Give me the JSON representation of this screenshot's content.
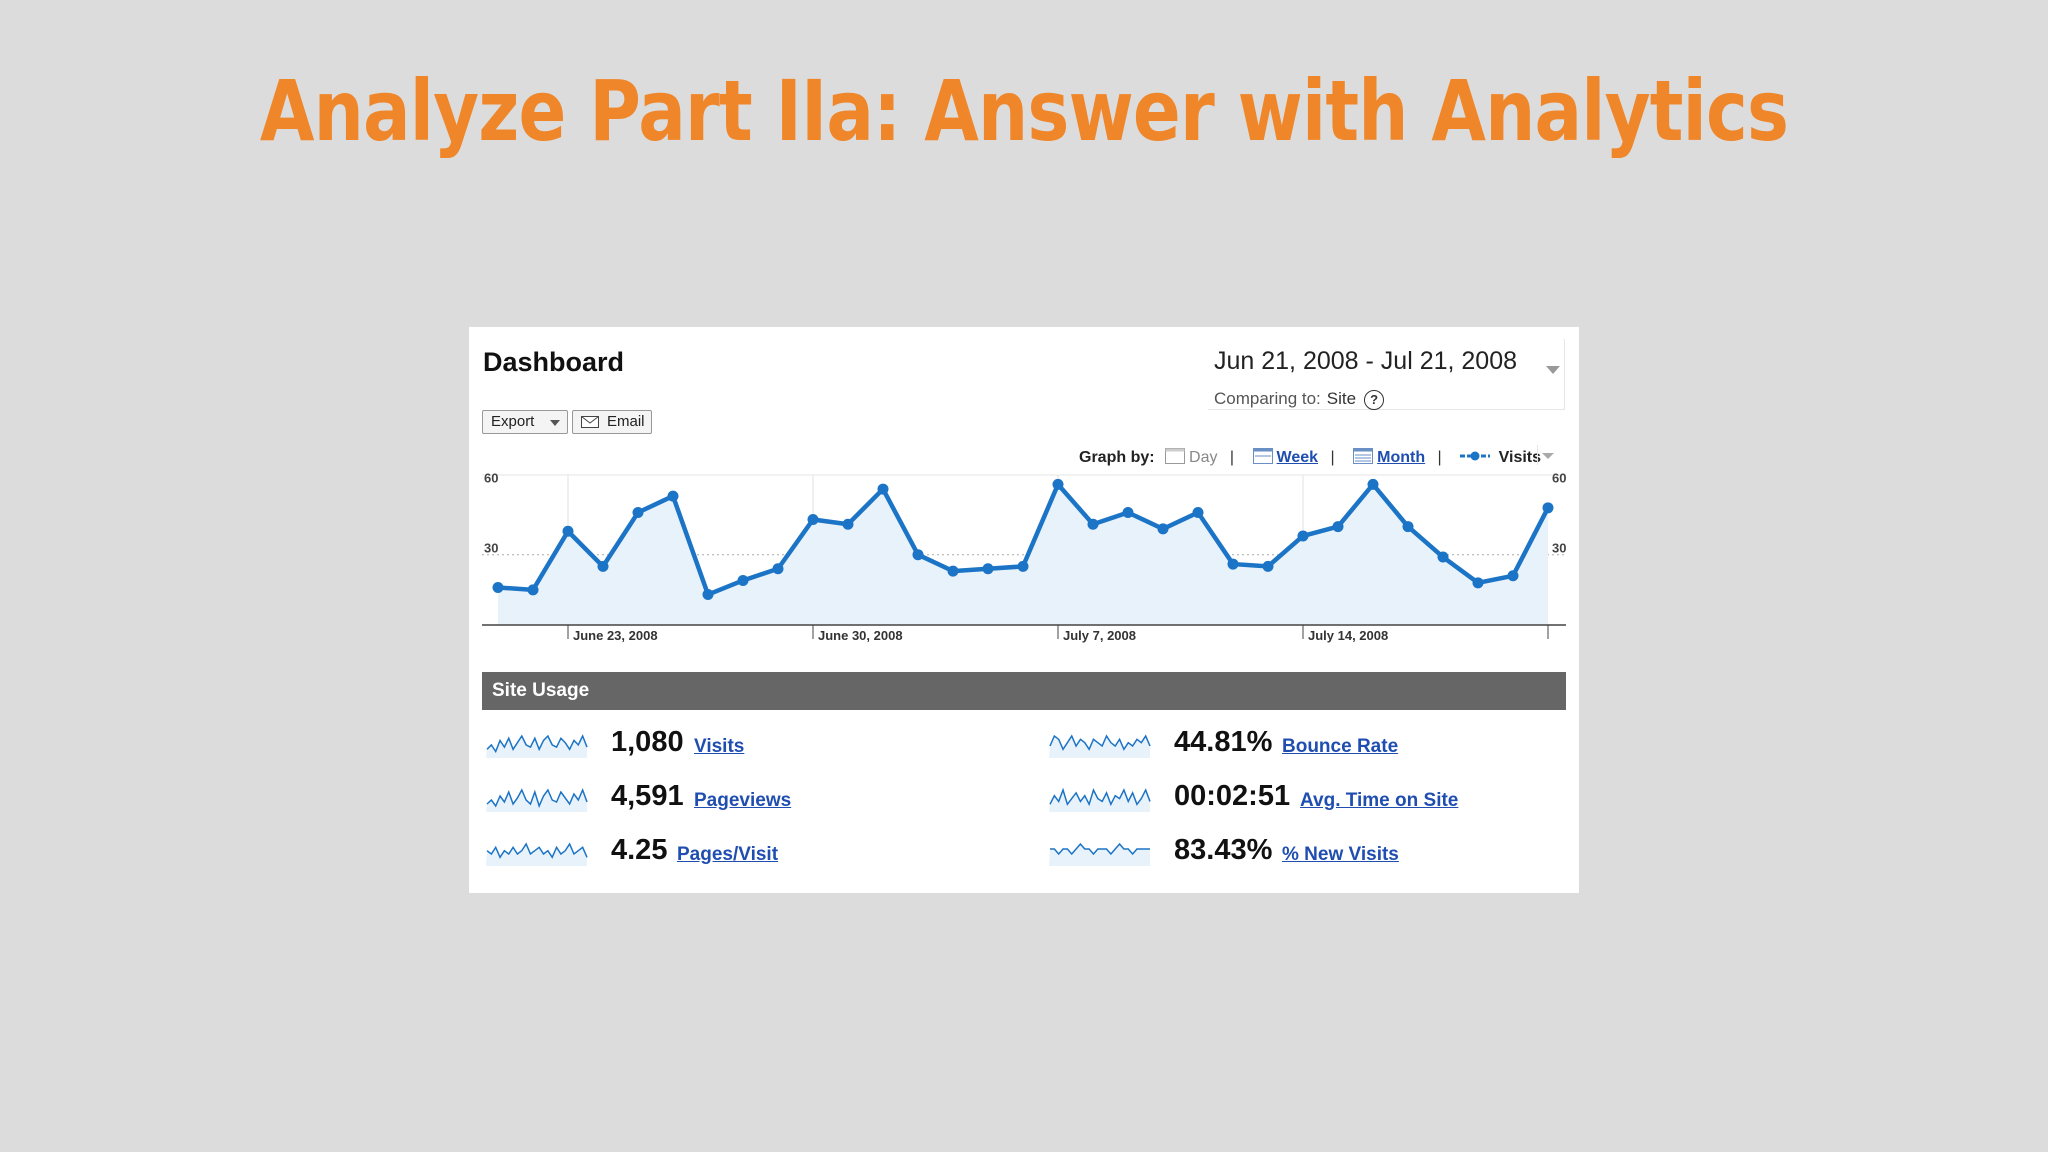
{
  "slide": {
    "title": "Analyze Part IIa: Answer with Analytics"
  },
  "dashboard": {
    "title": "Dashboard",
    "date_range": "Jun 21, 2008 - Jul 21, 2008",
    "comparing_label": "Comparing to:",
    "comparing_value": "Site",
    "help_glyph": "?",
    "export_label": "Export",
    "email_label": "Email"
  },
  "graph_by": {
    "label": "Graph by:",
    "day": "Day",
    "week": "Week",
    "month": "Month",
    "legend": "Visits",
    "separator": "|"
  },
  "chart_data": {
    "type": "line",
    "series": [
      {
        "name": "Visits",
        "values": [
          16,
          15,
          40,
          25,
          48,
          55,
          13,
          19,
          24,
          45,
          43,
          58,
          30,
          23,
          24,
          25,
          60,
          43,
          48,
          41,
          48,
          26,
          25,
          38,
          42,
          60,
          42,
          29,
          18,
          21,
          50
        ]
      }
    ],
    "x_tick_labels": [
      "June 23, 2008",
      "June 30, 2008",
      "July 7, 2008",
      "July 14, 2008"
    ],
    "x_tick_indices": [
      2,
      9,
      16,
      23
    ],
    "y_ticks": [
      30,
      60
    ],
    "ylim": [
      0,
      64
    ],
    "color": "#1c74c6",
    "fill": "#e8f2fb"
  },
  "site_usage": {
    "header": "Site Usage",
    "metrics": [
      {
        "value": "1,080",
        "label": "Visits",
        "spark": [
          4,
          6,
          3,
          8,
          5,
          9,
          4,
          7,
          10,
          6,
          5,
          9,
          4,
          8,
          10,
          6,
          5,
          9,
          7,
          4,
          8,
          6,
          10,
          5
        ]
      },
      {
        "value": "4,591",
        "label": "Pageviews",
        "spark": [
          3,
          5,
          2,
          7,
          4,
          9,
          3,
          6,
          10,
          5,
          3,
          9,
          2,
          7,
          10,
          5,
          4,
          9,
          6,
          3,
          8,
          5,
          10,
          4
        ]
      },
      {
        "value": "4.25",
        "label": "Pages/Visit",
        "spark": [
          6,
          5,
          7,
          4,
          6,
          5,
          7,
          5,
          6,
          8,
          5,
          6,
          7,
          5,
          6,
          4,
          7,
          5,
          6,
          8,
          5,
          6,
          7,
          4
        ]
      },
      {
        "value": "44.81%",
        "label": "Bounce Rate",
        "spark": [
          5,
          8,
          7,
          4,
          6,
          8,
          5,
          7,
          6,
          4,
          7,
          6,
          5,
          8,
          6,
          5,
          7,
          4,
          6,
          5,
          7,
          6,
          8,
          5
        ]
      },
      {
        "value": "00:02:51",
        "label": "Avg. Time on Site",
        "spark": [
          4,
          7,
          5,
          9,
          4,
          6,
          8,
          5,
          7,
          4,
          9,
          6,
          5,
          8,
          4,
          7,
          6,
          9,
          5,
          8,
          4,
          6,
          9,
          5
        ]
      },
      {
        "value": "83.43%",
        "label": "% New Visits",
        "spark": [
          6,
          6,
          5,
          6,
          6,
          5,
          6,
          7,
          6,
          6,
          5,
          6,
          6,
          6,
          5,
          6,
          7,
          6,
          6,
          5,
          6,
          6,
          6,
          6
        ]
      }
    ]
  }
}
